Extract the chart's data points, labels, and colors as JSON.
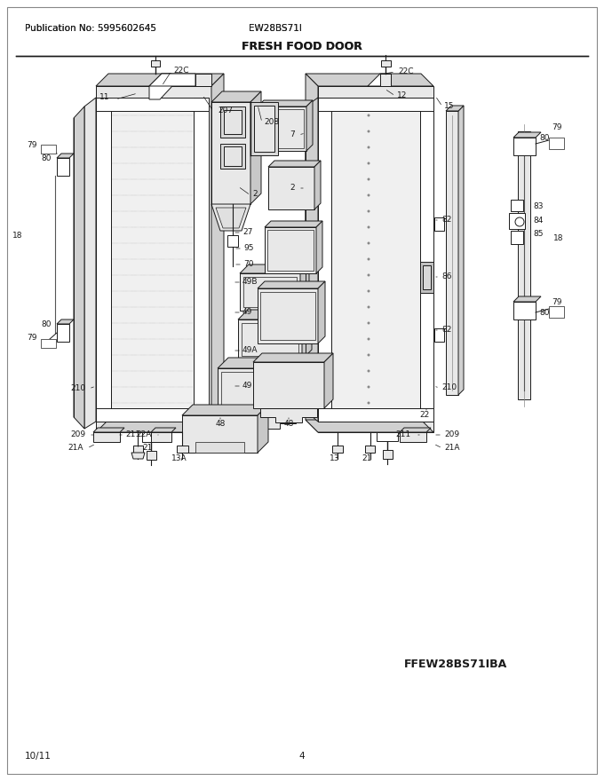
{
  "title": "FRESH FOOD DOOR",
  "pub_no": "Publication No: 5995602645",
  "model": "EW28BS71I",
  "footer_left": "10/11",
  "footer_center": "4",
  "diagram_model": "FFEW28BS71IBA",
  "bg_color": "#ffffff",
  "line_color": "#1a1a1a",
  "text_color": "#1a1a1a",
  "fill_light": "#e8e8e8",
  "fill_mid": "#d0d0d0",
  "fill_white": "#ffffff",
  "header_fontsize": 7.5,
  "title_fontsize": 9,
  "label_fontsize": 6.5,
  "bold_label_fontsize": 9
}
